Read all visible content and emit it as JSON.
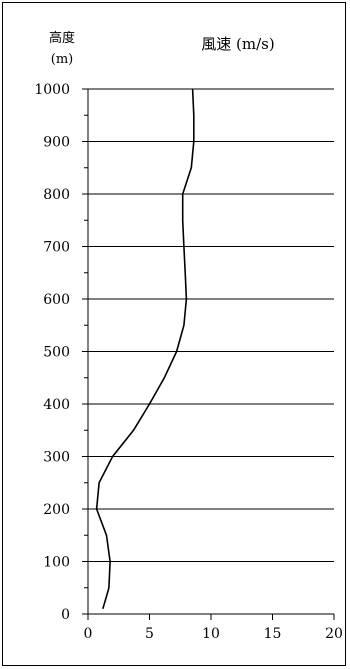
{
  "chart_data": {
    "type": "line",
    "title": "風速 (m/s)",
    "ylabel": "高度",
    "ylabel_unit": "(m)",
    "xlabel": "",
    "xlim": [
      0,
      20
    ],
    "ylim": [
      0,
      1000
    ],
    "x_ticks": [
      0,
      5,
      10,
      15,
      20
    ],
    "y_ticks": [
      0,
      100,
      200,
      300,
      400,
      500,
      600,
      700,
      800,
      900,
      1000
    ],
    "grid": "horizontal",
    "legend": "none",
    "series": [
      {
        "color": "#000000",
        "points": [
          {
            "x": 1.2,
            "y": 10
          },
          {
            "x": 1.4,
            "y": 25
          },
          {
            "x": 1.7,
            "y": 50
          },
          {
            "x": 1.8,
            "y": 100
          },
          {
            "x": 1.5,
            "y": 150
          },
          {
            "x": 0.7,
            "y": 200
          },
          {
            "x": 0.9,
            "y": 250
          },
          {
            "x": 2.0,
            "y": 300
          },
          {
            "x": 3.7,
            "y": 350
          },
          {
            "x": 5.0,
            "y": 400
          },
          {
            "x": 6.2,
            "y": 450
          },
          {
            "x": 7.2,
            "y": 500
          },
          {
            "x": 7.8,
            "y": 550
          },
          {
            "x": 8.0,
            "y": 600
          },
          {
            "x": 7.9,
            "y": 650
          },
          {
            "x": 7.8,
            "y": 700
          },
          {
            "x": 7.7,
            "y": 750
          },
          {
            "x": 7.7,
            "y": 800
          },
          {
            "x": 8.4,
            "y": 850
          },
          {
            "x": 8.6,
            "y": 900
          },
          {
            "x": 8.6,
            "y": 950
          },
          {
            "x": 8.5,
            "y": 1000
          }
        ]
      }
    ]
  }
}
